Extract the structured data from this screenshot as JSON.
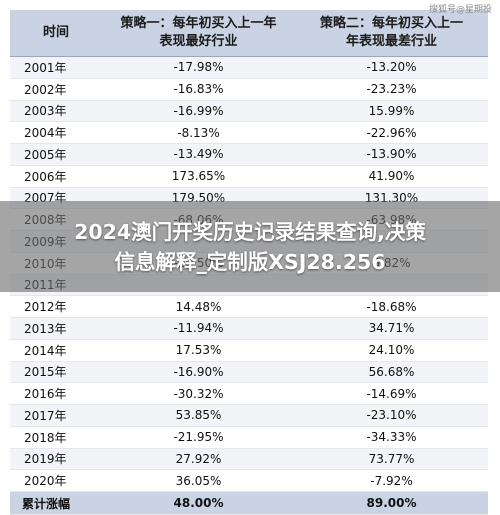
{
  "watermark": "搜狐号@星期投",
  "table": {
    "headers": {
      "col1": "时间",
      "col2_line1": "策略一：每年初买入上一年",
      "col2_line2": "表现最好行业",
      "col3_line1": "策略二：每年初买入上一",
      "col3_line2": "年表现最差行业"
    },
    "rows": [
      {
        "year": "2001年",
        "s1": "-17.98%",
        "s2": "-13.20%"
      },
      {
        "year": "2002年",
        "s1": "-16.83%",
        "s2": "-23.23%"
      },
      {
        "year": "2003年",
        "s1": "-16.99%",
        "s2": "15.99%"
      },
      {
        "year": "2004年",
        "s1": "-8.13%",
        "s2": "-22.96%"
      },
      {
        "year": "2005年",
        "s1": "-13.49%",
        "s2": "-13.90%"
      },
      {
        "year": "2006年",
        "s1": "173.65%",
        "s2": "41.90%"
      },
      {
        "year": "2007年",
        "s1": "179.50%",
        "s2": "131.30%"
      },
      {
        "year": "2008年",
        "s1": "-68.06%",
        "s2": "-63.98%"
      },
      {
        "year": "2009年",
        "s1": "",
        "s2": ""
      },
      {
        "year": "2010年",
        "s1": "-10.50%",
        "s2": "5.82%"
      },
      {
        "year": "2011年",
        "s1": "",
        "s2": ""
      },
      {
        "year": "2012年",
        "s1": "14.48%",
        "s2": "-18.68%"
      },
      {
        "year": "2013年",
        "s1": "-11.94%",
        "s2": "34.71%"
      },
      {
        "year": "2014年",
        "s1": "17.53%",
        "s2": "24.10%"
      },
      {
        "year": "2015年",
        "s1": "-16.90%",
        "s2": "56.68%"
      },
      {
        "year": "2016年",
        "s1": "-30.32%",
        "s2": "-14.69%"
      },
      {
        "year": "2017年",
        "s1": "53.85%",
        "s2": "-23.10%"
      },
      {
        "year": "2018年",
        "s1": "-21.95%",
        "s2": "-34.33%"
      },
      {
        "year": "2019年",
        "s1": "27.92%",
        "s2": "73.77%"
      },
      {
        "year": "2020年",
        "s1": "36.05%",
        "s2": "-7.92%"
      }
    ],
    "total": {
      "label": "累计涨幅",
      "s1": "48.00%",
      "s2": "89.00%"
    }
  },
  "overlay": {
    "line1": "2024澳门开奖历史记录结果查询,决策",
    "line2": "信息解释_定制版XSJ28.256"
  }
}
